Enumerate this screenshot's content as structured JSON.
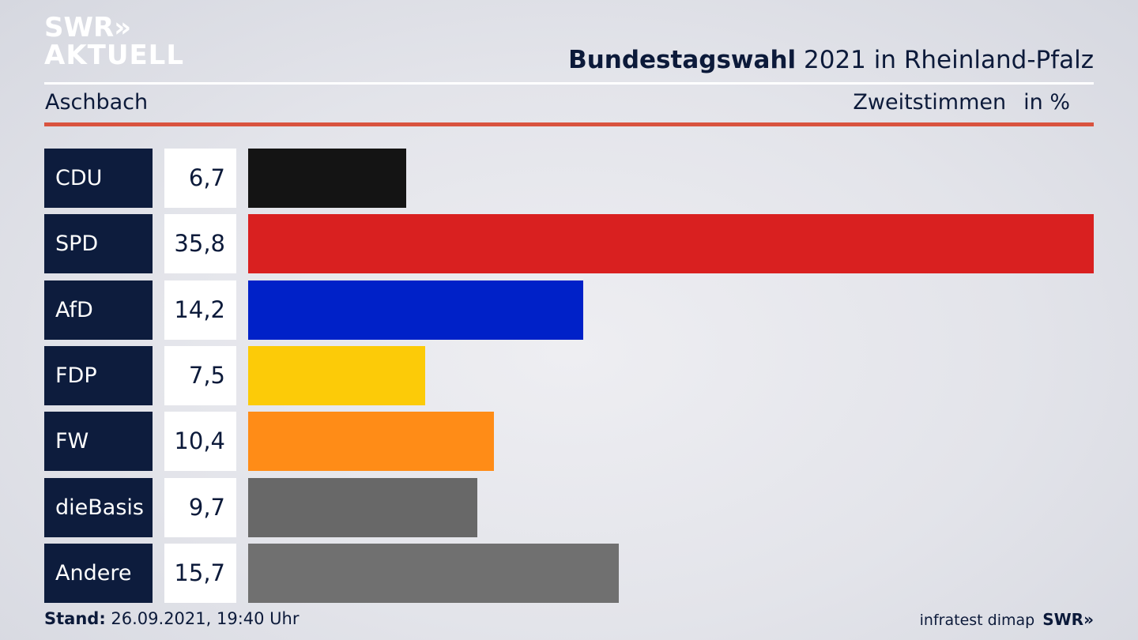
{
  "brand": {
    "logo_line1": "SWR»",
    "logo_line2": "AKTUELL"
  },
  "header": {
    "title_bold": "Bundestagswahl",
    "title_rest": " 2021 in Rheinland-Pfalz",
    "location": "Aschbach",
    "metric": "Zweitstimmen",
    "unit": "in %"
  },
  "chart_data": {
    "type": "bar",
    "orientation": "horizontal",
    "categories": [
      "CDU",
      "SPD",
      "AfD",
      "FDP",
      "FW",
      "dieBasis",
      "Andere"
    ],
    "values": [
      6.7,
      35.8,
      14.2,
      7.5,
      10.4,
      9.7,
      15.7
    ],
    "value_labels": [
      "6,7",
      "35,8",
      "14,2",
      "7,5",
      "10,4",
      "9,7",
      "15,7"
    ],
    "colors": [
      "#141414",
      "#d92020",
      "#0021c8",
      "#fccb08",
      "#ff8c17",
      "#686868",
      "#707070"
    ],
    "xlim": [
      0,
      35.8
    ],
    "grid": false
  },
  "footer": {
    "stand_label": "Stand:",
    "stand_value": " 26.09.2021, 19:40 Uhr",
    "source": "infratest dimap",
    "source_logo": "SWR»"
  }
}
